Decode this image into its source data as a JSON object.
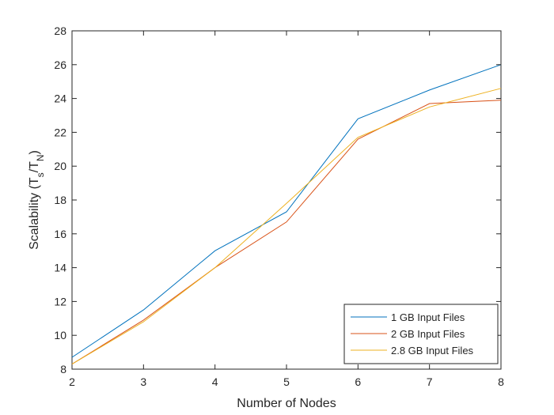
{
  "chart_data": {
    "type": "line",
    "xlabel": "Number of Nodes",
    "ylabel": {
      "main": "Scalability (T",
      "sub1": "s",
      "mid": "/T",
      "sub2": "N",
      "end": ")"
    },
    "xlim": [
      2,
      8
    ],
    "ylim": [
      8,
      28
    ],
    "xticks": [
      2,
      3,
      4,
      5,
      6,
      7,
      8
    ],
    "yticks": [
      8,
      10,
      12,
      14,
      16,
      18,
      20,
      22,
      24,
      26,
      28
    ],
    "grid": false,
    "legend_position": "bottom-right",
    "x": [
      2,
      3,
      4,
      5,
      6,
      7,
      8
    ],
    "series": [
      {
        "name": "1 GB Input Files",
        "color": "#0072BD",
        "values": [
          8.7,
          11.5,
          15.0,
          17.3,
          22.8,
          24.5,
          26.0
        ]
      },
      {
        "name": "2 GB Input Files",
        "color": "#D95319",
        "values": [
          8.3,
          10.9,
          14.0,
          16.7,
          21.6,
          23.7,
          23.9
        ]
      },
      {
        "name": "2.8 GB Input Files",
        "color": "#EDB120",
        "values": [
          8.3,
          10.8,
          14.0,
          17.8,
          21.7,
          23.5,
          24.6
        ]
      }
    ]
  }
}
